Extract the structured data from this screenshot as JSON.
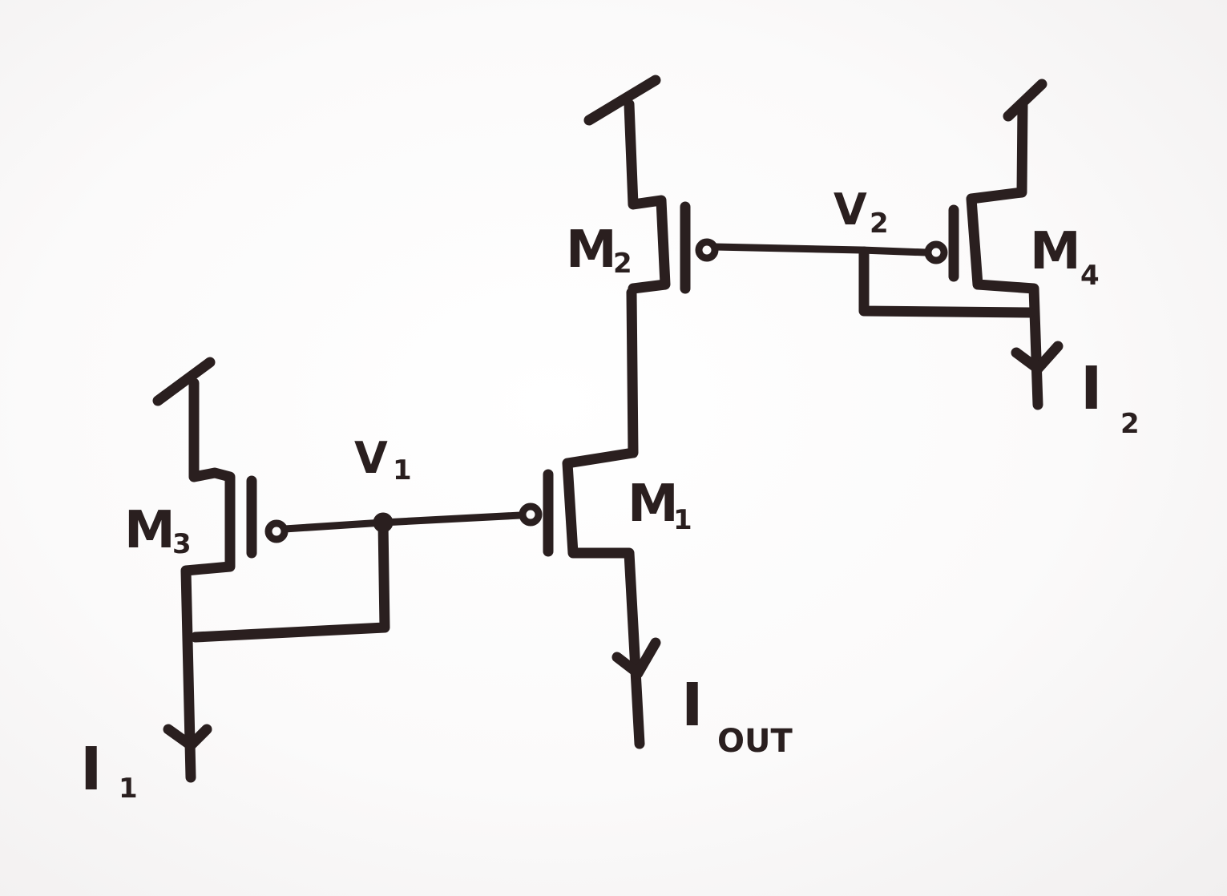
{
  "labels": {
    "m1": {
      "main": "M",
      "sub": "1"
    },
    "m2": {
      "main": "M",
      "sub": "2"
    },
    "m3": {
      "main": "M",
      "sub": "3"
    },
    "m4": {
      "main": "M",
      "sub": "4"
    },
    "v1": {
      "main": "V",
      "sub": "1"
    },
    "v2": {
      "main": "V",
      "sub": "2"
    },
    "i1": {
      "main": "I",
      "sub": "1"
    },
    "i2": {
      "main": "I",
      "sub": "2"
    },
    "iout": {
      "main": "I",
      "sub": "OUT"
    }
  },
  "colors": {
    "ink": "#2a1f1f",
    "paper": "#fbfafa"
  }
}
